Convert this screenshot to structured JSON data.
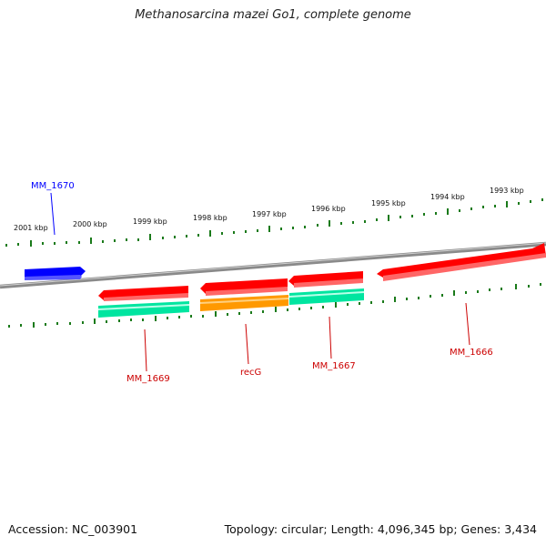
{
  "title": "Methanosarcina mazei Go1, complete genome",
  "footer": {
    "accession": "Accession: NC_003901",
    "summary": "Topology: circular; Length: 4,096,345 bp; Genes: 3,434"
  },
  "ruler_labels": [
    "2001 kbp",
    "2000 kbp",
    "1999 kbp",
    "1998 kbp",
    "1997 kbp",
    "1996 kbp",
    "1995 kbp",
    "1994 kbp",
    "1993 kbp"
  ],
  "genes": [
    {
      "label": "MM_1670",
      "strand": "forward",
      "color": "#0000ff",
      "label_color": "#0000ff"
    },
    {
      "label": "MM_1669",
      "strand": "reverse",
      "color": "#ff0000",
      "label_color": "#cc0000",
      "cog_color": "#00e5a0"
    },
    {
      "label": "recG",
      "strand": "reverse",
      "color": "#ff0000",
      "label_color": "#cc0000",
      "cog_color": "#ff9900"
    },
    {
      "label": "MM_1667",
      "strand": "reverse",
      "color": "#ff0000",
      "label_color": "#cc0000",
      "cog_color": "#00e5a0"
    },
    {
      "label": "MM_1666",
      "strand": "reverse",
      "color": "#ff0000",
      "label_color": "#cc0000"
    }
  ],
  "colors": {
    "backbone": "#8a8a8a",
    "ticks": "#1a7a1a",
    "forward_gene": "#0000ff",
    "reverse_gene": "#ff0000",
    "cog_teal": "#00e5a0",
    "cog_orange": "#ff9900"
  }
}
